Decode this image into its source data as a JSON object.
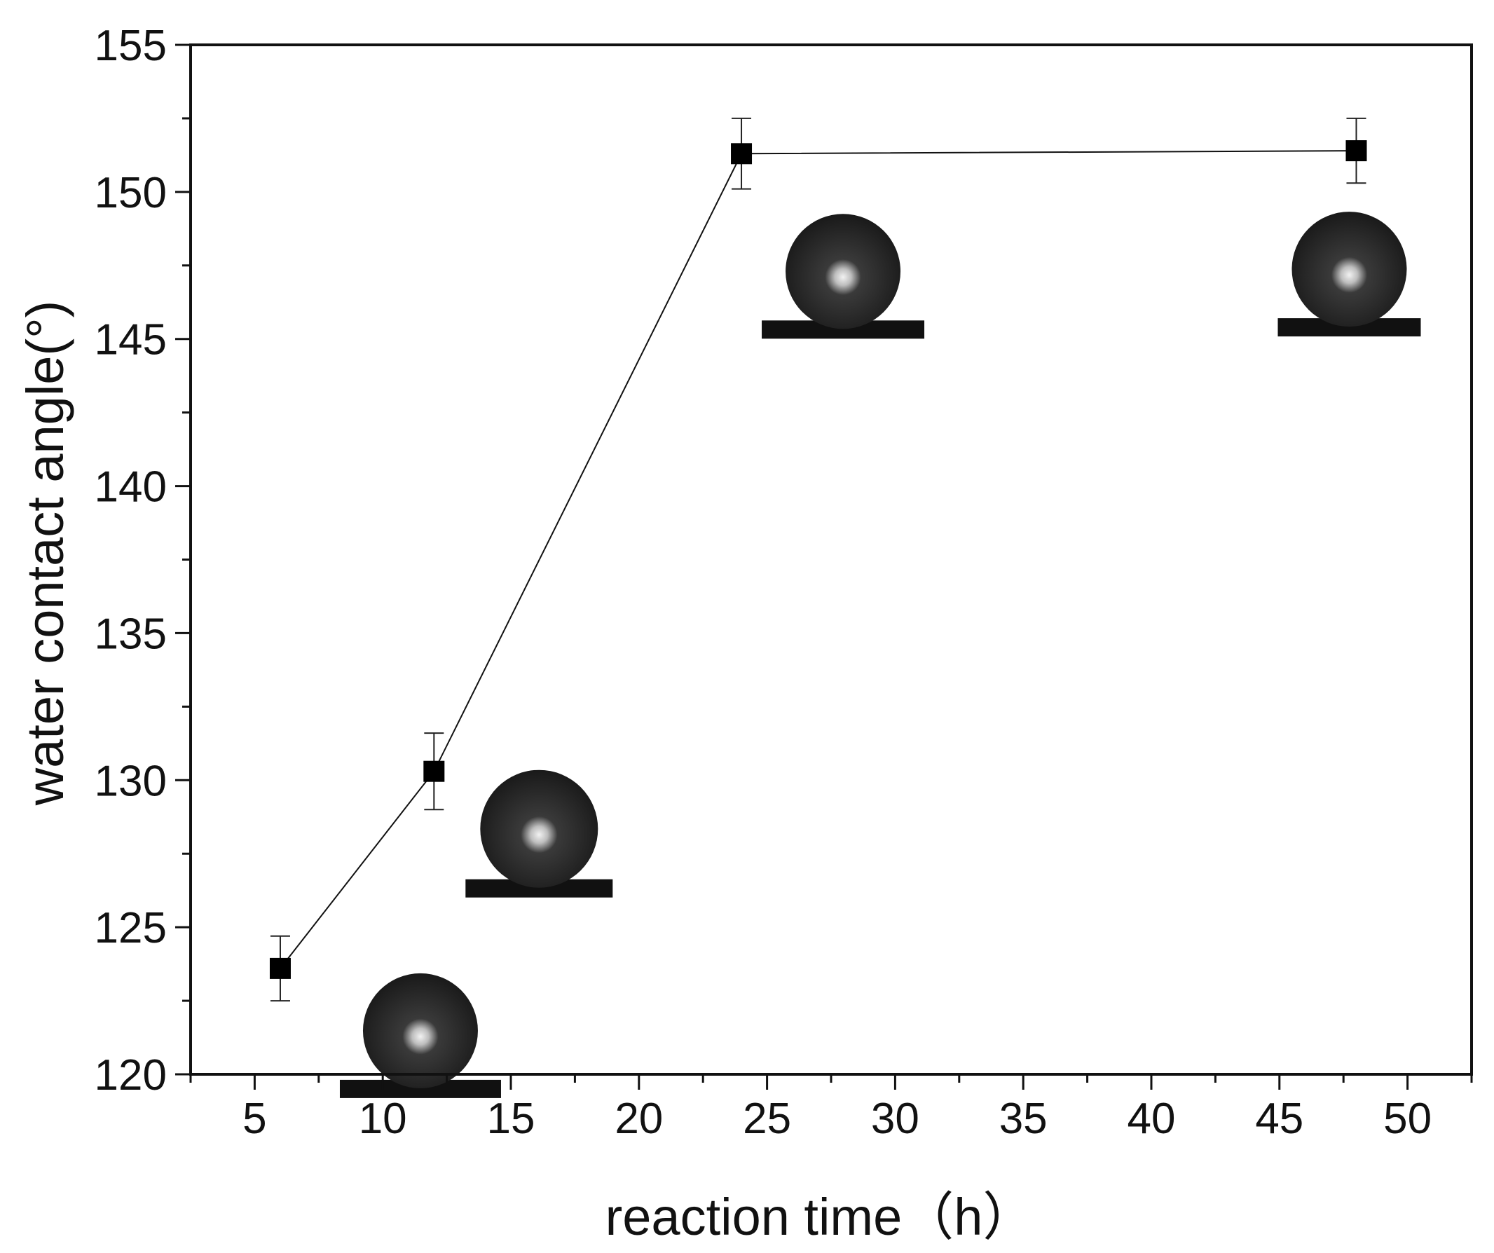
{
  "chart_data": {
    "type": "scatter",
    "title": "",
    "xlabel": "reaction time（h）",
    "ylabel": "water contact angle(°)",
    "xlim": [
      2.5,
      52.5
    ],
    "ylim": [
      120,
      155
    ],
    "x_ticks": [
      5,
      10,
      15,
      20,
      25,
      30,
      35,
      40,
      45,
      50
    ],
    "y_ticks": [
      120,
      125,
      130,
      135,
      140,
      145,
      150,
      155
    ],
    "x_minor_step": 2.5,
    "y_minor_step": 2.5,
    "grid": false,
    "line": true,
    "marker": "square",
    "colors": {
      "marker": "#000000",
      "line": "#111111",
      "axis": "#111111",
      "droplet": "#1a1a1a"
    },
    "series": [
      {
        "name": "water contact angle",
        "x": [
          6,
          12,
          24,
          48
        ],
        "y": [
          123.6,
          130.3,
          151.3,
          151.4
        ],
        "yerr": [
          1.1,
          1.3,
          1.2,
          1.1
        ]
      }
    ],
    "droplet_insets": [
      {
        "near_x": 6,
        "depicts": "water droplet"
      },
      {
        "near_x": 12,
        "depicts": "water droplet"
      },
      {
        "near_x": 24,
        "depicts": "water droplet"
      },
      {
        "near_x": 48,
        "depicts": "water droplet"
      }
    ]
  }
}
